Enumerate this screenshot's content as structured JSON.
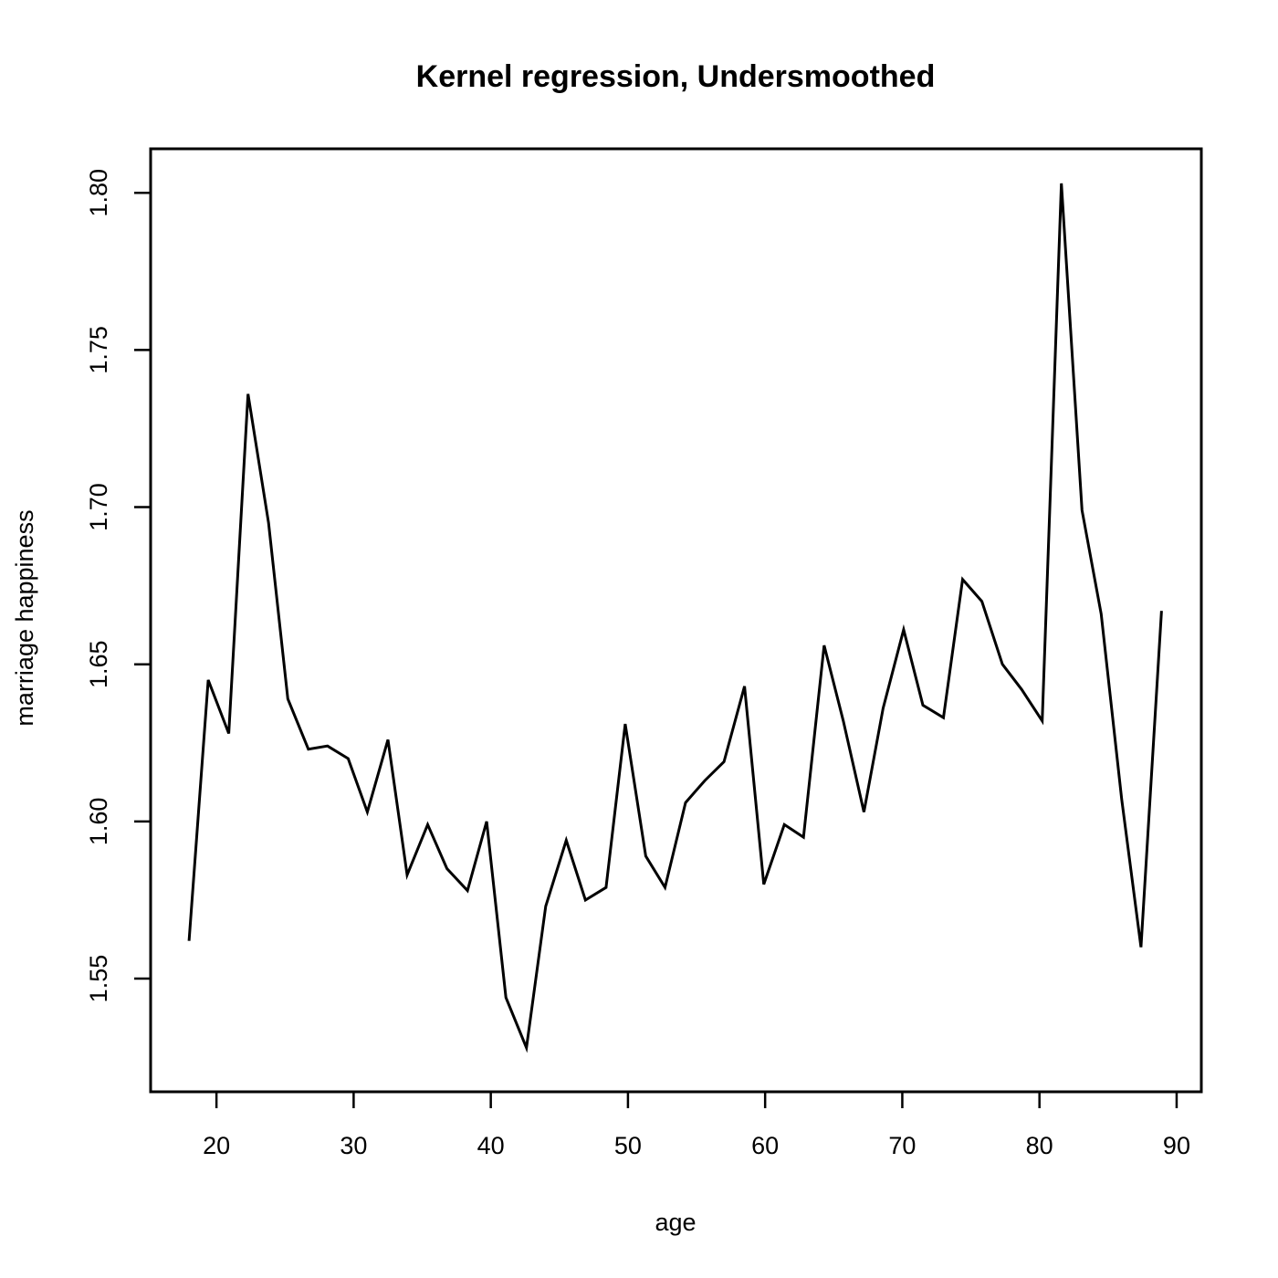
{
  "chart_data": {
    "type": "line",
    "title": "Kernel regression, Undersmoothed",
    "xlabel": "age",
    "ylabel": "marriage happiness",
    "xlim": [
      15.2,
      91.8
    ],
    "ylim": [
      1.514,
      1.814
    ],
    "xticks": [
      20,
      30,
      40,
      50,
      60,
      70,
      80,
      90
    ],
    "xtick_labels": [
      "20",
      "30",
      "40",
      "50",
      "60",
      "70",
      "80",
      "90"
    ],
    "yticks": [
      1.55,
      1.6,
      1.65,
      1.7,
      1.75,
      1.8
    ],
    "ytick_labels": [
      "1.55",
      "1.60",
      "1.65",
      "1.70",
      "1.75",
      "1.80"
    ],
    "grid": false,
    "series": [
      {
        "x": [
          18.0,
          19.4,
          20.9,
          22.3,
          23.8,
          25.2,
          26.7,
          28.1,
          29.6,
          31.0,
          32.5,
          33.9,
          35.4,
          36.8,
          38.3,
          39.7,
          41.1,
          42.6,
          44.0,
          45.5,
          46.9,
          48.4,
          49.8,
          51.3,
          52.7,
          54.2,
          55.6,
          57.0,
          58.5,
          59.9,
          61.4,
          62.8,
          64.3,
          65.7,
          67.2,
          68.6,
          70.1,
          71.5,
          73.0,
          74.4,
          75.8,
          77.3,
          78.7,
          80.2,
          81.6,
          83.1,
          84.5,
          86.0,
          87.4,
          88.9
        ],
        "values": [
          1.562,
          1.645,
          1.628,
          1.736,
          1.695,
          1.639,
          1.623,
          1.624,
          1.62,
          1.603,
          1.626,
          1.583,
          1.599,
          1.585,
          1.578,
          1.6,
          1.544,
          1.528,
          1.573,
          1.594,
          1.575,
          1.579,
          1.631,
          1.589,
          1.579,
          1.606,
          1.613,
          1.619,
          1.643,
          1.58,
          1.599,
          1.595,
          1.656,
          1.632,
          1.603,
          1.636,
          1.661,
          1.637,
          1.633,
          1.677,
          1.67,
          1.65,
          1.642,
          1.632,
          1.803,
          1.699,
          1.666,
          1.607,
          1.56,
          1.667
        ]
      }
    ]
  }
}
